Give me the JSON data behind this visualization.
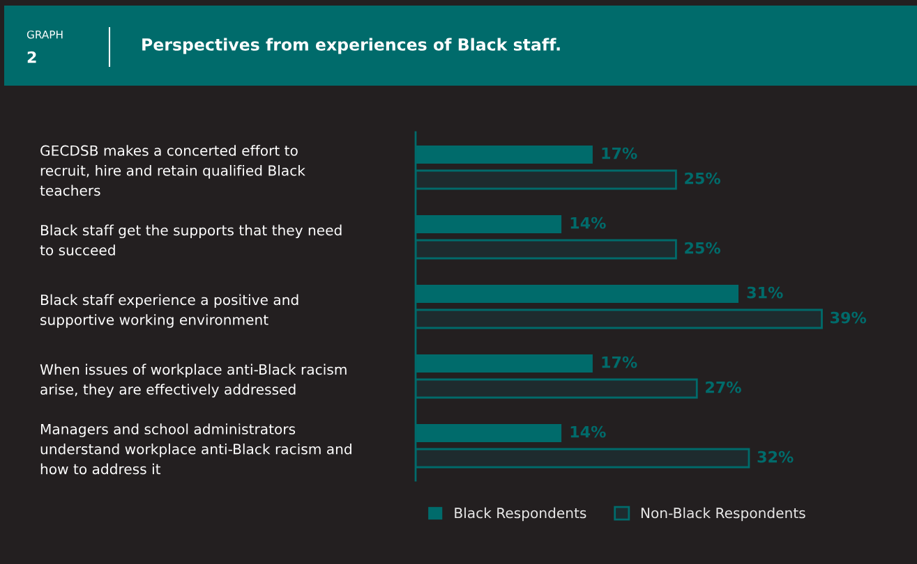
{
  "chart_data": {
    "type": "bar",
    "orientation": "horizontal",
    "title": "Perspectives from experiences of Black staff.",
    "annotations": [
      "GRAPH",
      "2"
    ],
    "categories": [
      "GECDSB makes a concerted effort to\nrecruit, hire and retain qualified Black\nteachers",
      "Black staff get the supports that they need\nto succeed",
      "Black staff experience a positive and\nsupportive working environment",
      "When issues of workplace anti-Black racism\narise, they are effectively addressed",
      "Managers and school administrators\nunderstand workplace anti-Black racism and\nhow to address it"
    ],
    "series": [
      {
        "name": "Black Respondents",
        "color": "#006b6b",
        "values": [
          17,
          14,
          31,
          17,
          14
        ],
        "value_labels": [
          "17%",
          "14%",
          "31%",
          "17%",
          "14%"
        ]
      },
      {
        "name": "Non-Black Respondents",
        "color": "#1e2b2e",
        "values": [
          25,
          25,
          39,
          27,
          32
        ],
        "value_labels": [
          "25%",
          "25%",
          "39%",
          "27%",
          "32%"
        ]
      }
    ],
    "tick_labels": "y",
    "legend": "bottom left"
  }
}
